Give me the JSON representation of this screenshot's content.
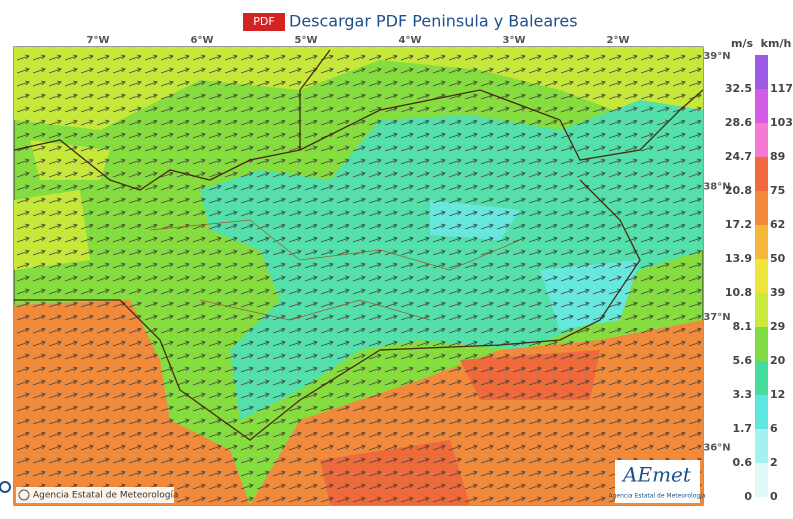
{
  "header": {
    "pdf_button": "PDF",
    "title": "Descargar PDF Peninsula y Baleares"
  },
  "map": {
    "longitude_labels": [
      "7°W",
      "6°W",
      "5°W",
      "4°W",
      "3°W",
      "2°W"
    ],
    "latitude_labels": [
      "39°N",
      "38°N",
      "37°N",
      "36°N"
    ],
    "attribution": "Agencia Estatal de Meteorología",
    "logo": {
      "name": "AEmet",
      "caption": "Agencia Estatal de Meteorología"
    }
  },
  "legend": {
    "headers": [
      "m/s",
      "km/h"
    ],
    "rows": [
      {
        "ms": 32.5,
        "kmh": 117,
        "color": "#9b59e6"
      },
      {
        "ms": 28.6,
        "kmh": 103,
        "color": "#d25ce6"
      },
      {
        "ms": 24.7,
        "kmh": 89,
        "color": "#f57ad2"
      },
      {
        "ms": 20.8,
        "kmh": 75,
        "color": "#f06a3c"
      },
      {
        "ms": 17.2,
        "kmh": 62,
        "color": "#f3873a"
      },
      {
        "ms": 13.9,
        "kmh": 50,
        "color": "#f4b73a"
      },
      {
        "ms": 10.8,
        "kmh": 39,
        "color": "#eee63a"
      },
      {
        "ms": 8.1,
        "kmh": 29,
        "color": "#c9ea3a"
      },
      {
        "ms": 5.6,
        "kmh": 20,
        "color": "#7fdc45"
      },
      {
        "ms": 3.3,
        "kmh": 12,
        "color": "#45dca0"
      },
      {
        "ms": 1.7,
        "kmh": 6,
        "color": "#5ee6e0"
      },
      {
        "ms": 0.6,
        "kmh": 2,
        "color": "#a5f0f0"
      },
      {
        "ms": 0,
        "kmh": 0,
        "color": "#dff8f8"
      }
    ]
  }
}
